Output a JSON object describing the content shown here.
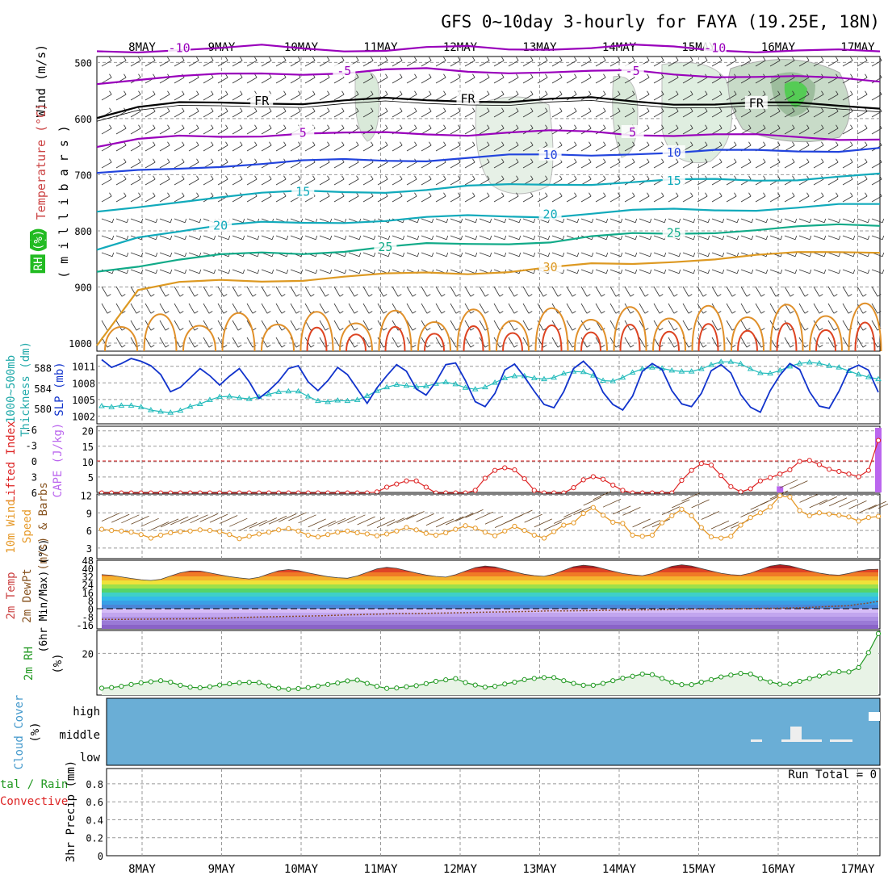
{
  "title": "GFS 0~10day 3-hourly for FAYA (19.25E, 18N)",
  "days": [
    "8MAY",
    "9MAY",
    "10MAY",
    "11MAY",
    "12MAY",
    "13MAY",
    "14MAY",
    "15MAY",
    "16MAY",
    "17MAY"
  ],
  "chart_data": [
    {
      "type": "line",
      "panel": "upper-air",
      "yaxis": {
        "label_parts": [
          "Wind (m/s)",
          "Temperature (°C)",
          "RH (%)"
        ],
        "unit": "m i l l i b a r s",
        "ticks": [
          500,
          600,
          700,
          800,
          900,
          1000
        ]
      },
      "temperature_isotherms": [
        {
          "label": "-10",
          "color": "#9900bb",
          "p": [
            480,
            478,
            476,
            477,
            472,
            474,
            476,
            478,
            476,
            474,
            475,
            473,
            474,
            472,
            474,
            476,
            478,
            479,
            481,
            482
          ]
        },
        {
          "label": "-5",
          "color": "#9900bb",
          "p": [
            535,
            528,
            526,
            524,
            520,
            518,
            517,
            515,
            514,
            516,
            515,
            516,
            518,
            517,
            520,
            522,
            525,
            528,
            530,
            532
          ]
        },
        {
          "label": "FR",
          "color": "#000000",
          "p": [
            595,
            580,
            575,
            573,
            570,
            571,
            569,
            567,
            568,
            566,
            568,
            567,
            566,
            569,
            571,
            573,
            574,
            575,
            576,
            578
          ]
        },
        {
          "label": "5",
          "color": "#9900bb",
          "p": [
            650,
            640,
            633,
            630,
            628,
            627,
            629,
            626,
            625,
            627,
            626,
            625,
            624,
            626,
            628,
            630,
            632,
            633,
            634,
            635
          ]
        },
        {
          "label": "10",
          "color": "#2244dd",
          "p": [
            700,
            695,
            688,
            682,
            680,
            678,
            675,
            673,
            672,
            670,
            668,
            666,
            663,
            660,
            662,
            660,
            657,
            655,
            656,
            654
          ]
        },
        {
          "label": "15",
          "color": "#11aabb",
          "p": [
            770,
            758,
            745,
            738,
            735,
            732,
            730,
            728,
            726,
            723,
            720,
            716,
            714,
            713,
            712,
            710,
            708,
            706,
            704,
            702
          ]
        },
        {
          "label": "20",
          "color": "#11aabb",
          "p": [
            835,
            808,
            798,
            792,
            788,
            786,
            782,
            780,
            778,
            776,
            774,
            772,
            768,
            766,
            764,
            762,
            760,
            758,
            756,
            755
          ]
        },
        {
          "label": "25",
          "color": "#11aa88",
          "p": [
            870,
            860,
            852,
            846,
            840,
            838,
            834,
            830,
            826,
            824,
            820,
            818,
            812,
            808,
            805,
            800,
            797,
            795,
            792,
            790
          ]
        },
        {
          "label": "30",
          "color": "#dd9922",
          "p": [
            1000,
            905,
            895,
            890,
            888,
            885,
            882,
            880,
            876,
            874,
            870,
            866,
            862,
            860,
            852,
            848,
            845,
            842,
            838,
            835
          ]
        }
      ]
    },
    {
      "type": "line",
      "panel": "thickness-slp",
      "left_axis": {
        "label": "1000~500mb Thickness (dm)",
        "ticks": [
          580,
          584,
          588
        ]
      },
      "right_axis": {
        "label": "SLP (mb)",
        "ticks": [
          1002,
          1005,
          1008,
          1011
        ]
      },
      "slp": [
        1012.2,
        1010.8,
        1011.5,
        1012.4,
        1011.9,
        1011.1,
        1009.5,
        1006.4,
        1007.2,
        1008.9,
        1010.6,
        1009.3,
        1007.6,
        1009.2,
        1010.6,
        1008.2,
        1005.2,
        1006.6,
        1008.3,
        1010.6,
        1011.1,
        1008.2,
        1006.6,
        1008.4,
        1010.8,
        1009.5,
        1006.9,
        1004.3,
        1007.1,
        1009.3,
        1011.3,
        1010.1,
        1006.9,
        1005.8,
        1008.2,
        1011.3,
        1011.6,
        1008.4,
        1004.6,
        1003.7,
        1006.1,
        1010.3,
        1011.4,
        1009.1,
        1006.5,
        1004.1,
        1003.5,
        1006.4,
        1010.6,
        1011.9,
        1010.1,
        1006.3,
        1004.1,
        1003.1,
        1005.6,
        1010.1,
        1011.5,
        1010.4,
        1006.6,
        1004.2,
        1003.7,
        1006.1,
        1010.2,
        1011.3,
        1009.8,
        1005.9,
        1003.6,
        1002.7,
        1006.6,
        1009.4,
        1011.5,
        1010.4,
        1006.4,
        1003.8,
        1003.4,
        1006.5,
        1010.4,
        1011.2,
        1010.3,
        1006.3
      ],
      "thickness": [
        580.5,
        580.3,
        580.6,
        580.6,
        580.3,
        579.7,
        579.4,
        579.2,
        579.6,
        580.4,
        580.9,
        581.7,
        582.3,
        582.4,
        582.1,
        581.9,
        582.3,
        582.8,
        583.3,
        583.4,
        583.4,
        582.4,
        581.5,
        581.3,
        581.6,
        581.5,
        581.7,
        582.5,
        583.5,
        584.2,
        584.7,
        584.5,
        584.3,
        584.4,
        584.9,
        585.2,
        584.8,
        584.1,
        583.8,
        584.2,
        585.1,
        586.0,
        586.4,
        586.4,
        586.0,
        585.8,
        586.1,
        586.9,
        587.3,
        587.2,
        586.5,
        585.5,
        585.4,
        586.1,
        587.1,
        587.8,
        588.1,
        587.9,
        587.5,
        587.3,
        587.3,
        587.8,
        588.6,
        589.2,
        589.2,
        588.8,
        587.8,
        587.0,
        586.9,
        587.5,
        588.3,
        588.9,
        589.1,
        588.9,
        588.4,
        588.1,
        587.4,
        586.7,
        586.2,
        585.8
      ]
    },
    {
      "type": "line",
      "panel": "stability",
      "left_axis": {
        "label": "Lifted Index",
        "ticks": [
          -6,
          -3,
          0,
          3,
          6
        ]
      },
      "right_axis": {
        "label": "CAPE (J/kg)",
        "ticks": [
          5,
          10,
          15,
          20
        ]
      },
      "lifted_index": [
        9.2,
        8.8,
        8.1,
        7.5,
        7.0,
        6.9,
        7.2,
        8.0,
        8.8,
        9.5,
        9.0,
        8.6,
        8.9,
        9.4,
        9.1,
        8.5,
        8.0,
        7.1,
        6.4,
        6.8,
        7.6,
        8.3,
        9.0,
        8.7,
        8.4,
        8.2,
        8.0,
        7.3,
        5.9,
        5.0,
        4.4,
        3.8,
        3.8,
        5.0,
        7.3,
        8.8,
        8.2,
        7.4,
        5.6,
        3.3,
        1.8,
        1.3,
        1.7,
        3.4,
        5.6,
        6.9,
        7.0,
        6.4,
        5.1,
        3.6,
        3.0,
        3.5,
        4.6,
        5.6,
        6.4,
        6.9,
        7.6,
        8.0,
        6.2,
        3.7,
        1.8,
        0.5,
        0.8,
        2.8,
        4.9,
        5.9,
        5.3,
        3.8,
        3.2,
        2.5,
        1.7,
        0.1,
        -0.1,
        0.7,
        1.6,
        2.0,
        2.5,
        3.0,
        1.8,
        -3.9
      ],
      "cape": [
        0,
        0,
        0,
        0,
        0,
        0,
        0,
        0,
        0,
        0,
        0,
        0,
        0,
        0,
        0,
        0,
        0,
        0,
        0,
        0,
        0,
        0,
        0,
        0,
        0,
        0,
        0,
        0,
        0,
        0,
        0,
        0,
        0,
        0,
        0,
        0,
        0,
        0,
        0,
        0,
        0,
        0,
        0,
        0,
        0,
        0,
        0,
        0,
        0,
        0,
        0,
        0,
        0,
        0,
        0,
        0,
        0,
        0,
        0,
        0,
        0,
        0,
        0,
        0,
        0,
        0,
        0,
        0,
        0,
        2,
        0,
        0,
        0,
        0,
        0,
        0,
        0,
        0,
        0,
        21
      ]
    },
    {
      "type": "line",
      "panel": "10m-wind",
      "yaxis": {
        "label": "10m Wind Speed & Barbs (m/s)",
        "ticks": [
          3,
          6,
          9,
          12
        ]
      },
      "speed": [
        6.2,
        6.0,
        5.9,
        5.7,
        5.3,
        4.7,
        5.2,
        5.6,
        5.8,
        5.9,
        6.1,
        6.0,
        5.8,
        5.3,
        4.6,
        5.0,
        5.4,
        5.7,
        6.1,
        6.3,
        5.9,
        5.2,
        4.9,
        5.3,
        5.7,
        5.9,
        5.6,
        5.4,
        5.1,
        5.4,
        5.9,
        6.5,
        6.1,
        5.5,
        5.2,
        5.6,
        6.2,
        6.8,
        6.4,
        5.7,
        5.1,
        5.9,
        6.7,
        6.0,
        5.2,
        4.7,
        5.8,
        6.9,
        7.3,
        8.9,
        9.9,
        8.6,
        7.4,
        7.2,
        5.2,
        5.0,
        5.2,
        7.3,
        8.5,
        9.6,
        8.5,
        6.5,
        4.9,
        4.7,
        5.0,
        6.9,
        8.2,
        9.0,
        10.0,
        11.9,
        11.7,
        9.4,
        8.5,
        9.0,
        8.8,
        8.6,
        8.3,
        7.6,
        8.2,
        8.4
      ]
    },
    {
      "type": "area",
      "panel": "2m-temp",
      "yaxis": {
        "label": "2m Temp 2m DewPt (6hr Min/Max) (°C)",
        "ticks": [
          -16,
          -8,
          0,
          8,
          16,
          24,
          32,
          40,
          48
        ]
      },
      "temp": [
        33.8,
        33.1,
        31.5,
        30.0,
        28.7,
        28.0,
        29.1,
        32.4,
        35.6,
        37.4,
        37.3,
        35.5,
        33.6,
        31.8,
        30.5,
        29.5,
        31.1,
        34.5,
        37.6,
        38.8,
        37.8,
        35.5,
        33.6,
        31.8,
        30.7,
        30.2,
        32.5,
        36.0,
        39.5,
        41.0,
        40.0,
        37.7,
        35.4,
        33.4,
        32.0,
        31.3,
        33.7,
        37.3,
        40.7,
        42.3,
        41.4,
        38.9,
        36.5,
        34.2,
        32.8,
        32.1,
        34.3,
        38.0,
        41.6,
        43.1,
        42.1,
        39.7,
        37.2,
        34.9,
        33.6,
        32.7,
        34.8,
        38.5,
        42.0,
        43.5,
        42.3,
        39.8,
        37.4,
        35.1,
        33.7,
        33.1,
        35.2,
        38.8,
        42.2,
        43.7,
        42.5,
        39.9,
        37.5,
        35.3,
        33.8,
        33.2,
        35.0,
        37.3,
        38.8,
        39.1
      ],
      "dewpoint": [
        -10.5,
        -10.6,
        -10.6,
        -10.4,
        -10.4,
        -10.3,
        -10.2,
        -10.1,
        -10.1,
        -10.0,
        -9.8,
        -9.6,
        -9.6,
        -9.2,
        -8.8,
        -8.5,
        -8.2,
        -8.0,
        -7.9,
        -7.6,
        -7.5,
        -7.3,
        -7.1,
        -6.8,
        -6.5,
        -6.1,
        -6.0,
        -5.6,
        -5.4,
        -5.1,
        -4.9,
        -4.8,
        -4.8,
        -4.6,
        -4.4,
        -4.3,
        -4.1,
        -3.9,
        -3.7,
        -3.4,
        -3.3,
        -3.2,
        -3.0,
        -2.8,
        -2.6,
        -2.3,
        -2.1,
        -2.2,
        -2.1,
        -2.0,
        -1.9,
        -1.7,
        -1.5,
        -1.3,
        -1.3,
        -1.2,
        -1.1,
        -1.0,
        -0.8,
        -0.6,
        -0.5,
        -0.4,
        -0.4,
        -0.2,
        -0.1,
        0.0,
        0.2,
        0.3,
        0.4,
        0.5,
        0.8,
        0.9,
        1.3,
        1.7,
        2.2,
        2.6,
        3.0,
        4.5,
        5.6,
        7.3
      ]
    },
    {
      "type": "area",
      "panel": "2m-rh",
      "yaxis": {
        "label": "2m RH (%)",
        "ticks": [
          20
        ]
      },
      "rh": [
        3.3,
        3.6,
        4.2,
        5.1,
        5.9,
        6.4,
        6.9,
        6.2,
        4.7,
        3.8,
        3.5,
        4.0,
        4.8,
        5.4,
        5.9,
        6.1,
        6.0,
        4.4,
        3.3,
        2.8,
        3.1,
        3.6,
        4.3,
        5.1,
        5.8,
        6.8,
        7.2,
        5.6,
        4.2,
        3.2,
        3.4,
        4.0,
        4.5,
        5.5,
        6.6,
        7.3,
        7.9,
        6.0,
        4.8,
        3.8,
        4.2,
        5.3,
        6.2,
        7.4,
        8.0,
        8.4,
        8.4,
        6.9,
        5.6,
        4.7,
        4.7,
        5.6,
        6.9,
        8.1,
        9.0,
        10.1,
        9.8,
        8.0,
        6.1,
        5.0,
        5.0,
        6.2,
        7.4,
        8.7,
        9.6,
        10.4,
        10.1,
        7.9,
        6.3,
        5.2,
        5.3,
        6.6,
        7.9,
        9.1,
        10.6,
        11.2,
        11.1,
        13.2,
        20.4,
        29.5
      ]
    },
    {
      "type": "bar",
      "panel": "cloud-cover",
      "yaxis": {
        "label": "Cloud Cover (%)",
        "levels": [
          "high",
          "middle",
          "low"
        ]
      }
    },
    {
      "type": "bar",
      "panel": "precip",
      "yaxis": {
        "label": "3hr Precip (mm)",
        "ticks": [
          0,
          0.2,
          0.4,
          0.6,
          0.8
        ]
      },
      "left_labels": [
        "Total / Rain",
        "Convective"
      ],
      "run_total": "Run Total = 0"
    }
  ],
  "labels": {
    "panel1_ylab_wind": "Wind (m/s)",
    "panel1_ylab_temp": "Temperature (°C)",
    "panel1_ylab_rh": "RH (%)",
    "panel1_ylab_mb": "( m i l l i b a r s )",
    "panel2_ylab_thick": "1000~500mb",
    "panel2_ylab_thick2": "Thickness (dm)",
    "panel2_ylab_slp": "SLP (mb)",
    "panel3_ylab_li": "Lifted Index",
    "panel3_ylab_cape": "CAPE (J/kg)",
    "panel4_ylab_a": "10m Wind",
    "panel4_ylab_b": "Speed",
    "panel4_ylab_c": "(m/s) & Barbs",
    "panel5_ylab_a": "2m Temp",
    "panel5_ylab_b": "2m DewPt",
    "panel5_ylab_c": "(6hr Min/Max) (°C)",
    "panel6_ylab_a": "2m RH",
    "panel6_ylab_b": "(%)",
    "panel7_ylab_a": "Cloud Cover",
    "panel7_ylab_b": "(%)",
    "panel7_level_high": "high",
    "panel7_level_middle": "middle",
    "panel7_level_low": "low",
    "panel8_ylab_a": "tal / Rain",
    "panel8_ylab_b": "Convective",
    "panel8_ylab_c": "3hr Precip (mm)",
    "panel8_run_total": "Run Total = 0"
  },
  "colors": {
    "slp": "#1133cc",
    "thickness": "#22bbbb",
    "lifted_index": "#dd2222",
    "cape": "#bb66ee",
    "wind_speed": "#e69a2a",
    "rh": "#229922",
    "cloud": "#6aaed6",
    "grid": "#999999"
  }
}
